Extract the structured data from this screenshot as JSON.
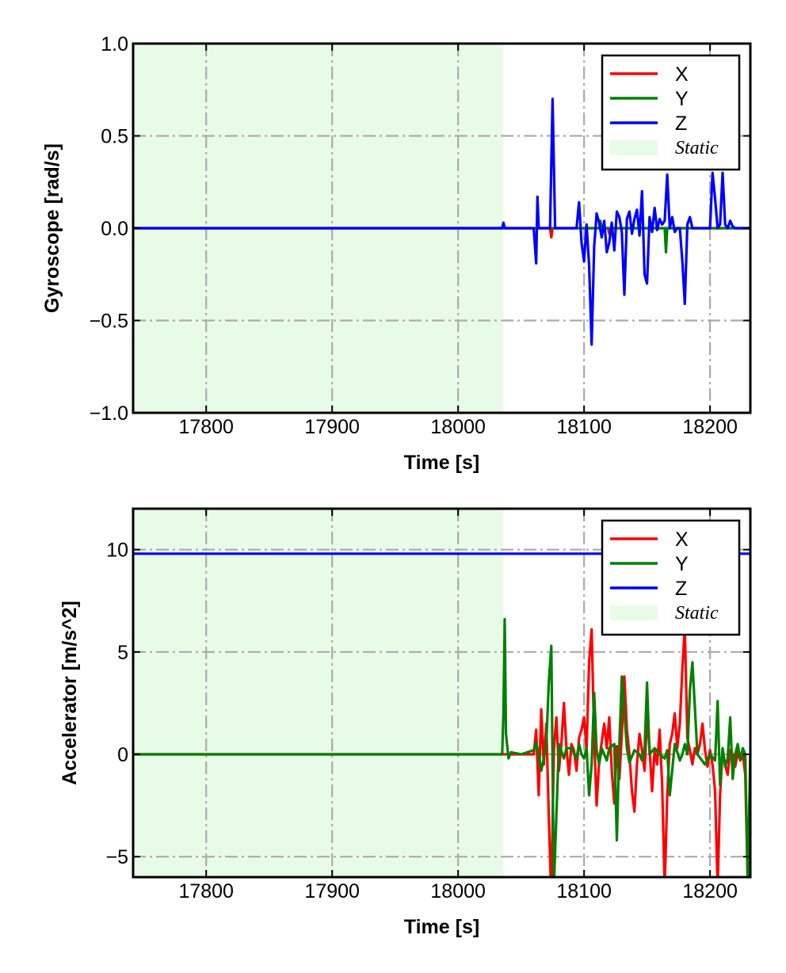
{
  "colors": {
    "X": "#ff0000",
    "Y": "#008000",
    "Z": "#0000ff",
    "static": "#e8fbe6",
    "grid": "#ababab"
  },
  "chart_data": [
    {
      "type": "line",
      "xlabel": "Time [s]",
      "ylabel": "Gyroscope [rad/s]",
      "xlim": [
        17742,
        18232
      ],
      "ylim": [
        -1.0,
        1.0
      ],
      "xticks": [
        17800,
        17900,
        18000,
        18100,
        18200
      ],
      "xtick_labels": [
        "17800",
        "17900",
        "18000",
        "18100",
        "18200"
      ],
      "yticks": [
        -1.0,
        -0.5,
        0.0,
        0.5,
        1.0
      ],
      "ytick_labels": [
        "−1.0",
        "−0.5",
        "0.0",
        "0.5",
        "1.0"
      ],
      "grid": true,
      "legend_position": "top-right",
      "static_span": {
        "label": "Static",
        "x": [
          17742,
          18036
        ]
      },
      "series": [
        {
          "name": "X",
          "color": "#ff0000",
          "x": [
            17742,
            18060,
            18073,
            18074,
            18075,
            18095,
            18119,
            18120,
            18121,
            18140,
            18232
          ],
          "y": [
            0,
            0,
            0,
            -0.05,
            0,
            0,
            0,
            -0.03,
            0,
            0,
            0
          ]
        },
        {
          "name": "Y",
          "color": "#008000",
          "x": [
            17742,
            18100,
            18112,
            18113,
            18114,
            18140,
            18164,
            18165,
            18166,
            18180,
            18232
          ],
          "y": [
            0,
            0,
            0,
            0.04,
            0,
            0,
            0,
            -0.13,
            0,
            0,
            0
          ]
        },
        {
          "name": "Z",
          "color": "#0000ff",
          "x": [
            17742,
            18035,
            18036,
            18037,
            18038,
            18060,
            18062,
            18063,
            18064,
            18065,
            18070,
            18073,
            18075,
            18077,
            18080,
            18090,
            18094,
            18096,
            18098,
            18100,
            18102,
            18104,
            18106,
            18108,
            18110,
            18112,
            18114,
            18116,
            18118,
            18120,
            18122,
            18124,
            18126,
            18128,
            18130,
            18132,
            18134,
            18136,
            18138,
            18140,
            18142,
            18144,
            18146,
            18148,
            18150,
            18152,
            18154,
            18156,
            18158,
            18160,
            18162,
            18164,
            18166,
            18168,
            18170,
            18172,
            18174,
            18176,
            18178,
            18180,
            18182,
            18184,
            18186,
            18190,
            18200,
            18202,
            18204,
            18206,
            18208,
            18210,
            18212,
            18214,
            18216,
            18218,
            18220,
            18222,
            18224,
            18232
          ],
          "y": [
            0,
            0,
            0.03,
            0,
            0,
            0,
            -0.19,
            0.17,
            0,
            0,
            0,
            0,
            0.7,
            0,
            0,
            0,
            0,
            0.14,
            -0.08,
            -0.18,
            0.02,
            -0.2,
            -0.63,
            -0.1,
            0.08,
            0.03,
            -0.05,
            0.04,
            -0.13,
            -0.08,
            0.03,
            -0.12,
            0.09,
            0.06,
            -0.02,
            -0.36,
            0.05,
            0.09,
            -0.03,
            0.05,
            0.1,
            -0.04,
            0.2,
            -0.25,
            -0.3,
            0.06,
            -0.02,
            0.11,
            -0.01,
            0.05,
            0.02,
            0.04,
            0.29,
            0.0,
            0.06,
            -0.02,
            0.0,
            0.0,
            -0.18,
            -0.41,
            0.02,
            0.06,
            0.0,
            0.0,
            0.0,
            0.3,
            0.16,
            0.0,
            0.02,
            0.3,
            0.02,
            0.0,
            0.04,
            0.01,
            0.0,
            0.0,
            0.0,
            0.0
          ]
        }
      ]
    },
    {
      "type": "line",
      "xlabel": "Time [s]",
      "ylabel": "Accelerator [m/s^2]",
      "xlim": [
        17742,
        18232
      ],
      "ylim": [
        -6.0,
        12.0
      ],
      "xticks": [
        17800,
        17900,
        18000,
        18100,
        18200
      ],
      "xtick_labels": [
        "17800",
        "17900",
        "18000",
        "18100",
        "18200"
      ],
      "yticks": [
        -5,
        0,
        5,
        10
      ],
      "ytick_labels": [
        "−5",
        "0",
        "5",
        "10"
      ],
      "grid": true,
      "legend_position": "top-right",
      "static_span": {
        "label": "Static",
        "x": [
          17742,
          18036
        ]
      },
      "series": [
        {
          "name": "X",
          "color": "#ff0000",
          "x": [
            17742,
            18060,
            18062,
            18064,
            18066,
            18068,
            18070,
            18072,
            18074,
            18076,
            18078,
            18080,
            18082,
            18084,
            18086,
            18088,
            18090,
            18092,
            18094,
            18096,
            18098,
            18100,
            18102,
            18104,
            18106,
            18108,
            18110,
            18112,
            18114,
            18116,
            18118,
            18120,
            18122,
            18124,
            18126,
            18128,
            18130,
            18132,
            18134,
            18136,
            18138,
            18140,
            18142,
            18144,
            18146,
            18148,
            18150,
            18152,
            18154,
            18156,
            18158,
            18160,
            18162,
            18164,
            18166,
            18168,
            18170,
            18172,
            18174,
            18176,
            18178,
            18180,
            18182,
            18184,
            18186,
            18188,
            18190,
            18192,
            18194,
            18196,
            18198,
            18200,
            18202,
            18204,
            18206,
            18208,
            18210,
            18212,
            18214,
            18216,
            18218,
            18220,
            18222,
            18224,
            18226,
            18228,
            18230,
            18232
          ],
          "y": [
            0,
            0,
            1.2,
            -2.0,
            2.2,
            -0.5,
            1.5,
            -3.0,
            -7.0,
            0.2,
            1.8,
            -0.8,
            0.5,
            2.5,
            0.3,
            -1.0,
            0.5,
            0.2,
            -0.8,
            0.8,
            1.2,
            1.8,
            0.3,
            4.5,
            6.1,
            0.8,
            -2.5,
            -0.3,
            0.6,
            1.5,
            0.3,
            1.8,
            -0.8,
            -2.4,
            0.4,
            -1.2,
            1.0,
            3.8,
            1.2,
            0.0,
            -1.8,
            -2.8,
            -0.5,
            1.0,
            0.2,
            -0.8,
            1.8,
            0.3,
            -1.8,
            0.2,
            -0.5,
            1.2,
            -1.5,
            -6.5,
            -2.0,
            0.5,
            1.0,
            2.0,
            0.3,
            1.5,
            4.2,
            6.2,
            0.8,
            0.2,
            -0.5,
            0.3,
            0.0,
            0.5,
            1.5,
            0.2,
            -0.6,
            0.2,
            -0.5,
            -1.8,
            -6.5,
            -2.0,
            0.2,
            -0.5,
            -1.0,
            0.2,
            0.0,
            -0.6,
            0.1,
            -0.3,
            0.0,
            -1.0,
            -6.5,
            0.0
          ]
        },
        {
          "name": "Y",
          "color": "#008000",
          "x": [
            17742,
            18035,
            18036,
            18037,
            18038,
            18040,
            18042,
            18050,
            18060,
            18062,
            18064,
            18066,
            18068,
            18070,
            18072,
            18074,
            18076,
            18078,
            18080,
            18084,
            18086,
            18090,
            18094,
            18096,
            18098,
            18100,
            18102,
            18104,
            18106,
            18108,
            18110,
            18112,
            18114,
            18116,
            18118,
            18120,
            18124,
            18126,
            18128,
            18130,
            18134,
            18136,
            18140,
            18144,
            18146,
            18148,
            18150,
            18152,
            18156,
            18160,
            18164,
            18166,
            18168,
            18172,
            18176,
            18178,
            18180,
            18182,
            18184,
            18186,
            18190,
            18196,
            18200,
            18204,
            18206,
            18208,
            18210,
            18212,
            18214,
            18216,
            18218,
            18220,
            18222,
            18224,
            18226,
            18228,
            18230,
            18232
          ],
          "y": [
            0,
            0,
            2.0,
            6.6,
            1.0,
            -0.2,
            0.1,
            0,
            0.2,
            0.6,
            0.0,
            -0.8,
            -0.2,
            0.5,
            3.5,
            5.3,
            -6.5,
            -3.0,
            0.5,
            -0.2,
            0.3,
            0.3,
            -0.2,
            0.5,
            0.0,
            -0.2,
            0.3,
            -2.0,
            -0.5,
            3.0,
            0.2,
            -0.5,
            0.3,
            0.0,
            -0.3,
            0.3,
            0.5,
            -4.2,
            0.5,
            3.8,
            0.3,
            -0.4,
            0.2,
            0.0,
            -0.3,
            0.2,
            3.5,
            0.0,
            0.3,
            0.0,
            -0.2,
            0.2,
            -2.0,
            0.5,
            -0.3,
            0.0,
            0.5,
            0.0,
            3.1,
            4.5,
            0.0,
            -0.5,
            0.0,
            -0.3,
            2.6,
            -1.5,
            0.3,
            -0.6,
            -0.2,
            1.8,
            -1.2,
            0.0,
            0.5,
            -0.3,
            0.3,
            0.0,
            -6.5,
            0.0
          ]
        },
        {
          "name": "Z",
          "color": "#0000ff",
          "x": [
            17742,
            18232
          ],
          "y": [
            9.8,
            9.8
          ]
        }
      ]
    }
  ]
}
